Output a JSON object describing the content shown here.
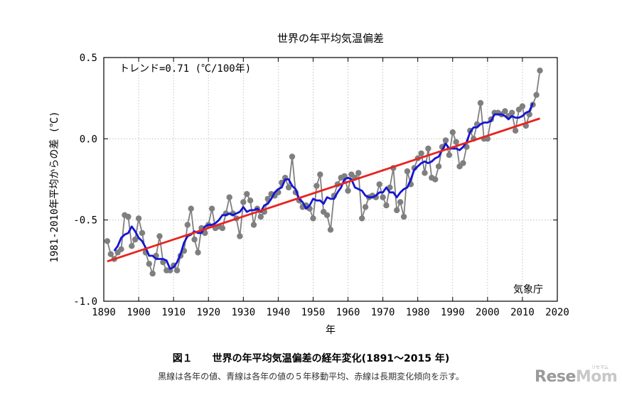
{
  "chart_data": {
    "type": "line",
    "title": "世界の年平均気温偏差",
    "xlabel": "年",
    "ylabel": "1981-2010年平均からの差 (℃)",
    "xlim": [
      1890,
      2020
    ],
    "ylim": [
      -1.0,
      0.5
    ],
    "x_ticks": [
      1890,
      1900,
      1910,
      1920,
      1930,
      1940,
      1950,
      1960,
      1970,
      1980,
      1990,
      2000,
      2010,
      2020
    ],
    "y_ticks": [
      -1.0,
      -0.5,
      0.0,
      0.5
    ],
    "y_tick_labels": [
      "-1.0",
      "-0.5",
      "0.0",
      "0.5"
    ],
    "grid": true,
    "annotation_trend": "トレンド=0.71 (℃/100年)",
    "annotation_source": "気象庁",
    "colors": {
      "annual": "#7f7f7f",
      "moving_avg": "#1515d4",
      "trend": "#e8231e"
    },
    "series": [
      {
        "key": "annual",
        "years": [
          1891,
          1892,
          1893,
          1894,
          1895,
          1896,
          1897,
          1898,
          1899,
          1900,
          1901,
          1902,
          1903,
          1904,
          1905,
          1906,
          1907,
          1908,
          1909,
          1910,
          1911,
          1912,
          1913,
          1914,
          1915,
          1916,
          1917,
          1918,
          1919,
          1920,
          1921,
          1922,
          1923,
          1924,
          1925,
          1926,
          1927,
          1928,
          1929,
          1930,
          1931,
          1932,
          1933,
          1934,
          1935,
          1936,
          1937,
          1938,
          1939,
          1940,
          1941,
          1942,
          1943,
          1944,
          1945,
          1946,
          1947,
          1948,
          1949,
          1950,
          1951,
          1952,
          1953,
          1954,
          1955,
          1956,
          1957,
          1958,
          1959,
          1960,
          1961,
          1962,
          1963,
          1964,
          1965,
          1966,
          1967,
          1968,
          1969,
          1970,
          1971,
          1972,
          1973,
          1974,
          1975,
          1976,
          1977,
          1978,
          1979,
          1980,
          1981,
          1982,
          1983,
          1984,
          1985,
          1986,
          1987,
          1988,
          1989,
          1990,
          1991,
          1992,
          1993,
          1994,
          1995,
          1996,
          1997,
          1998,
          1999,
          2000,
          2001,
          2002,
          2003,
          2004,
          2005,
          2006,
          2007,
          2008,
          2009,
          2010,
          2011,
          2012,
          2013,
          2014,
          2015
        ],
        "values": [
          -0.63,
          -0.71,
          -0.74,
          -0.7,
          -0.68,
          -0.47,
          -0.48,
          -0.66,
          -0.62,
          -0.49,
          -0.58,
          -0.7,
          -0.77,
          -0.83,
          -0.72,
          -0.6,
          -0.76,
          -0.81,
          -0.81,
          -0.78,
          -0.81,
          -0.72,
          -0.69,
          -0.53,
          -0.43,
          -0.62,
          -0.7,
          -0.55,
          -0.58,
          -0.53,
          -0.43,
          -0.55,
          -0.54,
          -0.55,
          -0.46,
          -0.36,
          -0.46,
          -0.49,
          -0.6,
          -0.39,
          -0.34,
          -0.38,
          -0.53,
          -0.43,
          -0.48,
          -0.45,
          -0.37,
          -0.34,
          -0.35,
          -0.33,
          -0.27,
          -0.24,
          -0.3,
          -0.11,
          -0.33,
          -0.38,
          -0.42,
          -0.41,
          -0.43,
          -0.49,
          -0.29,
          -0.22,
          -0.45,
          -0.47,
          -0.56,
          -0.35,
          -0.28,
          -0.24,
          -0.23,
          -0.32,
          -0.22,
          -0.24,
          -0.21,
          -0.49,
          -0.42,
          -0.36,
          -0.35,
          -0.36,
          -0.28,
          -0.36,
          -0.41,
          -0.3,
          -0.18,
          -0.44,
          -0.39,
          -0.48,
          -0.2,
          -0.28,
          -0.18,
          -0.12,
          -0.09,
          -0.21,
          -0.06,
          -0.24,
          -0.25,
          -0.17,
          -0.05,
          -0.01,
          -0.1,
          0.04,
          -0.02,
          -0.17,
          -0.15,
          -0.05,
          0.05,
          0.0,
          0.09,
          0.22,
          0.0,
          0.0,
          0.12,
          0.16,
          0.16,
          0.15,
          0.17,
          0.14,
          0.16,
          0.05,
          0.18,
          0.2,
          0.08,
          0.15,
          0.21,
          0.27,
          0.42
        ]
      },
      {
        "key": "moving_avg",
        "years": [
          1893,
          1894,
          1895,
          1896,
          1897,
          1898,
          1899,
          1900,
          1901,
          1902,
          1903,
          1904,
          1905,
          1906,
          1907,
          1908,
          1909,
          1910,
          1911,
          1912,
          1913,
          1914,
          1915,
          1916,
          1917,
          1918,
          1919,
          1920,
          1921,
          1922,
          1923,
          1924,
          1925,
          1926,
          1927,
          1928,
          1929,
          1930,
          1931,
          1932,
          1933,
          1934,
          1935,
          1936,
          1937,
          1938,
          1939,
          1940,
          1941,
          1942,
          1943,
          1944,
          1945,
          1946,
          1947,
          1948,
          1949,
          1950,
          1951,
          1952,
          1953,
          1954,
          1955,
          1956,
          1957,
          1958,
          1959,
          1960,
          1961,
          1962,
          1963,
          1964,
          1965,
          1966,
          1967,
          1968,
          1969,
          1970,
          1971,
          1972,
          1973,
          1974,
          1975,
          1976,
          1977,
          1978,
          1979,
          1980,
          1981,
          1982,
          1983,
          1984,
          1985,
          1986,
          1987,
          1988,
          1989,
          1990,
          1991,
          1992,
          1993,
          1994,
          1995,
          1996,
          1997,
          1998,
          1999,
          2000,
          2001,
          2002,
          2003,
          2004,
          2005,
          2006,
          2007,
          2008,
          2009,
          2010,
          2011,
          2012,
          2013
        ],
        "values": [
          -0.69,
          -0.66,
          -0.61,
          -0.59,
          -0.58,
          -0.54,
          -0.57,
          -0.61,
          -0.63,
          -0.67,
          -0.72,
          -0.72,
          -0.74,
          -0.74,
          -0.74,
          -0.75,
          -0.8,
          -0.79,
          -0.76,
          -0.71,
          -0.64,
          -0.6,
          -0.59,
          -0.57,
          -0.58,
          -0.58,
          -0.54,
          -0.53,
          -0.53,
          -0.52,
          -0.5,
          -0.47,
          -0.47,
          -0.46,
          -0.47,
          -0.46,
          -0.45,
          -0.42,
          -0.45,
          -0.44,
          -0.44,
          -0.43,
          -0.45,
          -0.41,
          -0.4,
          -0.37,
          -0.33,
          -0.31,
          -0.3,
          -0.25,
          -0.25,
          -0.29,
          -0.31,
          -0.37,
          -0.39,
          -0.43,
          -0.41,
          -0.37,
          -0.38,
          -0.38,
          -0.4,
          -0.36,
          -0.37,
          -0.37,
          -0.33,
          -0.3,
          -0.25,
          -0.24,
          -0.25,
          -0.3,
          -0.31,
          -0.32,
          -0.35,
          -0.36,
          -0.36,
          -0.35,
          -0.33,
          -0.33,
          -0.3,
          -0.33,
          -0.33,
          -0.36,
          -0.33,
          -0.31,
          -0.3,
          -0.25,
          -0.19,
          -0.17,
          -0.15,
          -0.14,
          -0.15,
          -0.14,
          -0.12,
          -0.11,
          -0.07,
          -0.03,
          -0.06,
          -0.06,
          -0.06,
          -0.07,
          -0.05,
          -0.02,
          0.04,
          0.07,
          0.07,
          0.09,
          0.1,
          0.1,
          0.11,
          0.15,
          0.15,
          0.15,
          0.14,
          0.12,
          0.14,
          0.13,
          0.13,
          0.14,
          0.16,
          0.17,
          0.22
        ]
      },
      {
        "key": "trend",
        "years": [
          1891,
          2015
        ],
        "values": [
          -0.755,
          0.125
        ]
      }
    ]
  },
  "figure": {
    "title": "図１　　世界の年平均気温偏差の経年変化(1891～2015 年)",
    "note": "黒線は各年の値、青線は各年の値の５年移動平均、赤線は長期変化傾向を示す。"
  },
  "watermark": {
    "main": "Rese",
    "accent": "Mom",
    "sub": "リセマム"
  }
}
